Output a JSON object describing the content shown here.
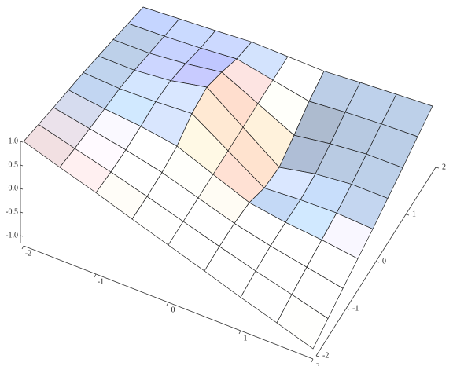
{
  "chart_data": {
    "type": "surface",
    "x": [
      -2,
      -1.5,
      -1,
      -0.5,
      0,
      0.5,
      1,
      1.5,
      2
    ],
    "y": [
      -2,
      -1.5,
      -1,
      -0.5,
      0,
      0.5,
      1,
      1.5,
      2
    ],
    "z": [
      [
        1.0,
        0.75,
        0.51,
        0.25,
        0,
        -0.25,
        -0.51,
        -0.75,
        -1.0
      ],
      [
        0.86,
        0.65,
        0.45,
        0.23,
        0,
        -0.23,
        -0.45,
        -0.65,
        -0.86
      ],
      [
        0.72,
        0.57,
        0.42,
        0.24,
        0,
        -0.24,
        -0.42,
        -0.57,
        -0.72
      ],
      [
        0.59,
        0.49,
        0.42,
        0.3,
        0,
        -0.3,
        -0.42,
        -0.49,
        -0.59
      ],
      [
        0.46,
        0.42,
        0.44,
        0.49,
        0,
        -0.49,
        -0.44,
        -0.42,
        -0.46
      ],
      [
        0.31,
        0.31,
        0.39,
        0.55,
        0,
        -0.55,
        -0.39,
        -0.31,
        -0.31
      ],
      [
        0.16,
        0.17,
        0.25,
        0.37,
        0,
        -0.37,
        -0.25,
        -0.17,
        -0.16
      ],
      [
        0.0,
        0.03,
        0.08,
        0.15,
        0,
        -0.15,
        -0.08,
        -0.03,
        0.0
      ],
      [
        -0.15,
        -0.1,
        -0.05,
        0.01,
        0,
        -0.01,
        0.05,
        0.1,
        0.15
      ]
    ],
    "xlim": [
      -2,
      2
    ],
    "ylim": [
      -2,
      2
    ],
    "zlim": [
      -1.15,
      1.0
    ],
    "xticks": [
      -2,
      -1,
      0,
      1,
      2
    ],
    "yticks": [
      -2,
      -1,
      0,
      1,
      2
    ],
    "zticks": [
      {
        "value": -1,
        "label": "-1.0"
      },
      -0.5,
      {
        "value": 0,
        "label": "0.0"
      },
      0.5,
      {
        "value": 1,
        "label": "1.0"
      }
    ],
    "colors": [
      "#9fc8ff",
      "#ff9a6a",
      "#5a3ce6"
    ],
    "mesh": true
  }
}
